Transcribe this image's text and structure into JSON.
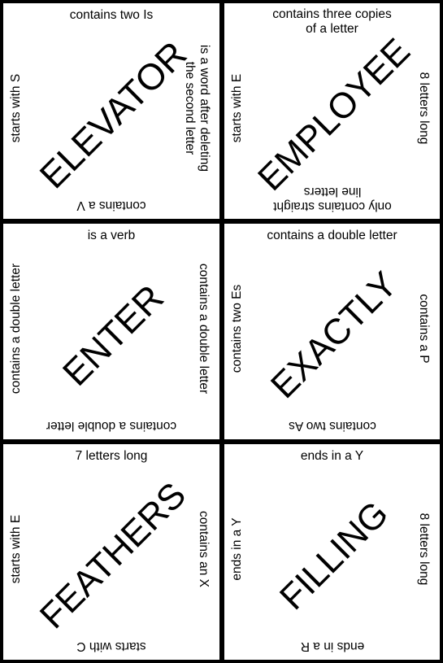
{
  "colors": {
    "background": "#000000",
    "tile": "#ffffff",
    "text": "#000000"
  },
  "tiles": [
    {
      "word": "ELEVATOR",
      "top": "contains two Is",
      "right": "is a word after deleting\nthe second letter",
      "bottom": "contains a V",
      "left": "starts with S"
    },
    {
      "word": "EMPLOYEE",
      "top": "contains three copies\nof a letter",
      "right": "8 letters long",
      "bottom": "only contains straight\nline letters",
      "left": "starts with E"
    },
    {
      "word": "ENTER",
      "top": "is a verb",
      "right": "contains a double letter",
      "bottom": "contains a double letter",
      "left": "contains a double letter"
    },
    {
      "word": "EXACTLY",
      "top": "contains a double letter",
      "right": "contains a P",
      "bottom": "contains two As",
      "left": "contains two Es"
    },
    {
      "word": "FEATHERS",
      "top": "7 letters long",
      "right": "contains an X",
      "bottom": "starts with C",
      "left": "starts with E"
    },
    {
      "word": "FILLING",
      "top": "ends in a Y",
      "right": "8 letters long",
      "bottom": "ends in a R",
      "left": "ends in a Y"
    }
  ]
}
